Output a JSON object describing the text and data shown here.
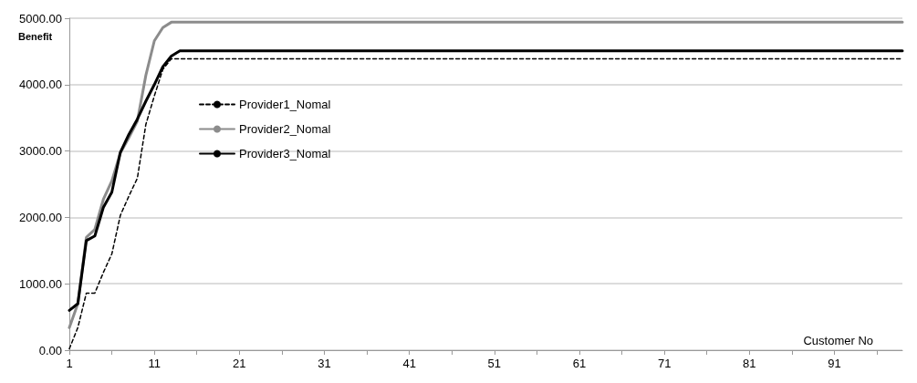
{
  "chart_data": {
    "type": "line",
    "ylabel": "Benefit",
    "xlabel": "Customer No",
    "x": [
      1,
      2,
      3,
      4,
      5,
      6,
      7,
      8,
      9,
      10,
      11,
      12,
      13,
      14,
      15,
      16,
      17,
      18,
      19,
      20,
      21,
      22,
      23,
      24,
      25,
      26,
      27,
      28,
      29,
      30,
      31,
      32,
      33,
      34,
      35,
      36,
      37,
      38,
      39,
      40,
      41,
      42,
      43,
      44,
      45,
      46,
      47,
      48,
      49,
      50,
      51,
      52,
      53,
      54,
      55,
      56,
      57,
      58,
      59,
      60,
      61,
      62,
      63,
      64,
      65,
      66,
      67,
      68,
      69,
      70,
      71,
      72,
      73,
      74,
      75,
      76,
      77,
      78,
      79,
      80,
      81,
      82,
      83,
      84,
      85,
      86,
      87,
      88,
      89,
      90,
      91,
      92,
      93,
      94,
      95,
      96,
      97,
      98,
      99
    ],
    "xlim": [
      1,
      99
    ],
    "xticks": [
      1,
      {
        "value": 6,
        "label": null
      },
      11,
      {
        "value": 16,
        "label": null
      },
      21,
      {
        "value": 26,
        "label": null
      },
      31,
      {
        "value": 36,
        "label": null
      },
      41,
      {
        "value": 46,
        "label": null
      },
      51,
      {
        "value": 56,
        "label": null
      },
      61,
      {
        "value": 66,
        "label": null
      },
      71,
      {
        "value": 76,
        "label": null
      },
      81,
      {
        "value": 86,
        "label": null
      },
      91,
      {
        "value": 96,
        "label": null
      }
    ],
    "ylim": [
      0,
      5000
    ],
    "yticks": [
      {
        "value": 0,
        "label": "0.00"
      },
      {
        "value": 1000,
        "label": "1000.00"
      },
      {
        "value": 2000,
        "label": "2000.00"
      },
      {
        "value": 3000,
        "label": "3000.00"
      },
      {
        "value": 4000,
        "label": "4000.00"
      },
      {
        "value": 5000,
        "label": "5000.00"
      }
    ],
    "grid": "y",
    "legend": "top left",
    "marker": "none",
    "series": [
      {
        "name": "Provider1_Nomal",
        "color": "#000000",
        "line_style": "dashed",
        "values": [
          20,
          340,
          860,
          860,
          1170,
          1450,
          2030,
          2320,
          2590,
          3400,
          3830,
          4230,
          4390,
          4390,
          4390,
          4390,
          4390,
          4390,
          4390,
          4390,
          4390,
          4390,
          4390,
          4390,
          4390,
          4390,
          4390,
          4390,
          4390,
          4390,
          4390,
          4390,
          4390,
          4390,
          4390,
          4390,
          4390,
          4390,
          4390,
          4390,
          4390,
          4390,
          4390,
          4390,
          4390,
          4390,
          4390,
          4390,
          4390,
          4390,
          4390,
          4390,
          4390,
          4390,
          4390,
          4390,
          4390,
          4390,
          4390,
          4390,
          4390,
          4390,
          4390,
          4390,
          4390,
          4390,
          4390,
          4390,
          4390,
          4390,
          4390,
          4390,
          4390,
          4390,
          4390,
          4390,
          4390,
          4390,
          4390,
          4390,
          4390,
          4390,
          4390,
          4390,
          4390,
          4390,
          4390,
          4390,
          4390,
          4390,
          4390,
          4390,
          4390,
          4390,
          4390,
          4390,
          4390,
          4390,
          4390
        ]
      },
      {
        "name": "Provider2_Nomal",
        "color": "#8c8c8c",
        "line_style": "solid",
        "values": [
          340,
          700,
          1700,
          1820,
          2270,
          2550,
          2970,
          3200,
          3450,
          4140,
          4660,
          4860,
          4940,
          4940,
          4940,
          4940,
          4940,
          4940,
          4940,
          4940,
          4940,
          4940,
          4940,
          4940,
          4940,
          4940,
          4940,
          4940,
          4940,
          4940,
          4940,
          4940,
          4940,
          4940,
          4940,
          4940,
          4940,
          4940,
          4940,
          4940,
          4940,
          4940,
          4940,
          4940,
          4940,
          4940,
          4940,
          4940,
          4940,
          4940,
          4940,
          4940,
          4940,
          4940,
          4940,
          4940,
          4940,
          4940,
          4940,
          4940,
          4940,
          4940,
          4940,
          4940,
          4940,
          4940,
          4940,
          4940,
          4940,
          4940,
          4940,
          4940,
          4940,
          4940,
          4940,
          4940,
          4940,
          4940,
          4940,
          4940,
          4940,
          4940,
          4940,
          4940,
          4940,
          4940,
          4940,
          4940,
          4940,
          4940,
          4940,
          4940,
          4940,
          4940,
          4940,
          4940,
          4940,
          4940,
          4940
        ]
      },
      {
        "name": "Provider3_Nomal",
        "color": "#000000",
        "line_style": "solid",
        "values": [
          600,
          700,
          1650,
          1720,
          2150,
          2380,
          2980,
          3250,
          3480,
          3750,
          4000,
          4270,
          4430,
          4510,
          4510,
          4510,
          4510,
          4510,
          4510,
          4510,
          4510,
          4510,
          4510,
          4510,
          4510,
          4510,
          4510,
          4510,
          4510,
          4510,
          4510,
          4510,
          4510,
          4510,
          4510,
          4510,
          4510,
          4510,
          4510,
          4510,
          4510,
          4510,
          4510,
          4510,
          4510,
          4510,
          4510,
          4510,
          4510,
          4510,
          4510,
          4510,
          4510,
          4510,
          4510,
          4510,
          4510,
          4510,
          4510,
          4510,
          4510,
          4510,
          4510,
          4510,
          4510,
          4510,
          4510,
          4510,
          4510,
          4510,
          4510,
          4510,
          4510,
          4510,
          4510,
          4510,
          4510,
          4510,
          4510,
          4510,
          4510,
          4510,
          4510,
          4510,
          4510,
          4510,
          4510,
          4510,
          4510,
          4510,
          4510,
          4510,
          4510,
          4510,
          4510,
          4510,
          4510,
          4510,
          4510
        ]
      }
    ]
  }
}
